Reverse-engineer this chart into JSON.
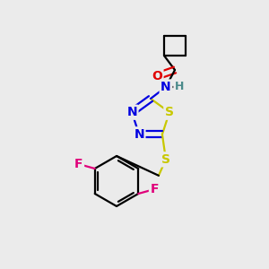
{
  "background_color": "#ebebeb",
  "figsize": [
    3.0,
    3.0
  ],
  "dpi": 100,
  "atom_colors": {
    "C": "#000000",
    "S": "#c8c800",
    "N": "#0000e0",
    "O": "#e00000",
    "F": "#e0007a",
    "H": "#4a8a8a"
  },
  "font_size": 10,
  "font_size_h": 9
}
